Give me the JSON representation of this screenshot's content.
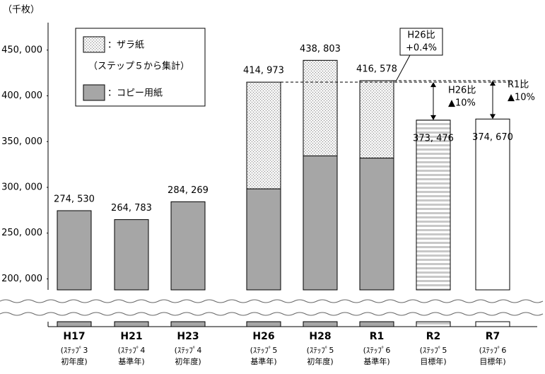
{
  "chart_data": {
    "type": "bar",
    "y_unit": "（千枚）",
    "categories": [
      "H17",
      "H21",
      "H23",
      "H26",
      "H28",
      "R1",
      "R2",
      "R7"
    ],
    "sublabels": [
      [
        "(ｽﾃｯﾌﾟ3",
        "初年度)"
      ],
      [
        "(ｽﾃｯﾌﾟ4",
        "基準年)"
      ],
      [
        "(ｽﾃｯﾌﾟ4",
        "初年度)"
      ],
      [
        "(ｽﾃｯﾌﾟ5",
        "基準年)"
      ],
      [
        "(ｽﾃｯﾌﾟ5",
        "初年度)"
      ],
      [
        "(ｽﾃｯﾌﾟ6",
        "基準年)"
      ],
      [
        "(ｽﾃｯﾌﾟ5",
        "目標年)"
      ],
      [
        "(ｽﾃｯﾌﾟ6",
        "目標年)"
      ]
    ],
    "series": [
      {
        "name": "：コピー用紙",
        "color": "#a6a6a6",
        "values": [
          274530,
          264783,
          284269,
          298400,
          334400,
          332000,
          null,
          null
        ]
      },
      {
        "name": "：ザラ紙",
        "note": "（ステップ５から集計）",
        "color": "#e6e6e6",
        "values": [
          null,
          null,
          null,
          116573,
          104403,
          84578,
          null,
          null
        ]
      },
      {
        "color": "#d9d9d9",
        "values": [
          null,
          null,
          null,
          null,
          null,
          null,
          373476,
          374670
        ]
      }
    ],
    "totals": {
      "values": [
        274530,
        264783,
        284269,
        414973,
        438803,
        416578,
        373476,
        374670
      ],
      "value_labels": [
        "274, 530",
        "264, 783",
        "284, 269",
        "414, 973",
        "438, 803",
        "416, 578",
        "373, 476",
        "374, 670"
      ]
    },
    "annotations": [
      [
        "H26比",
        "+0.4%"
      ],
      [
        "H26比",
        "▲10%"
      ],
      [
        "R1比",
        "▲10%"
      ]
    ],
    "ylim": [
      188000,
      480000
    ],
    "yticks": [
      {
        "value": 200000,
        "label": "200, 000"
      },
      {
        "value": 250000,
        "label": "250, 000"
      },
      {
        "value": 300000,
        "label": "300, 000"
      },
      {
        "value": 350000,
        "label": "350, 000"
      },
      {
        "value": 400000,
        "label": "400, 000"
      },
      {
        "value": 450000,
        "label": "450, 000"
      }
    ]
  }
}
